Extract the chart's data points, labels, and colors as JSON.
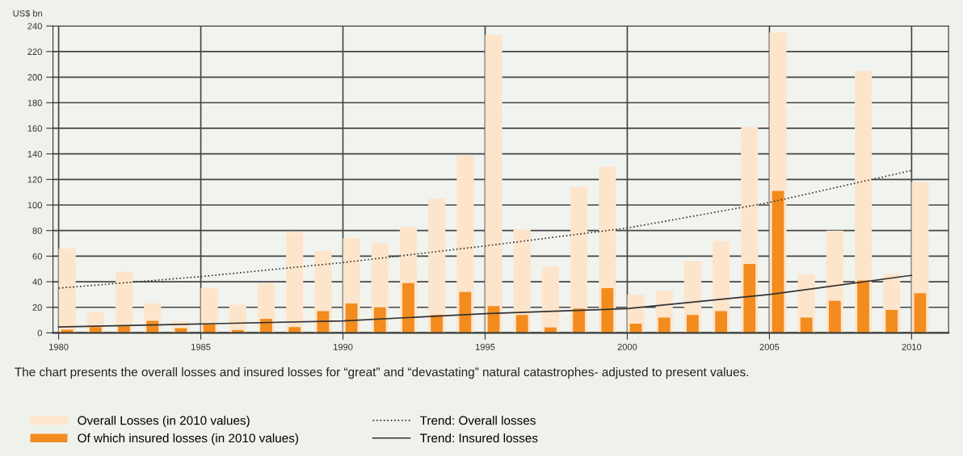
{
  "chart_data": {
    "type": "bar",
    "ylabel": "US$ bn",
    "x": [
      1980,
      1981,
      1982,
      1983,
      1984,
      1985,
      1986,
      1987,
      1988,
      1989,
      1990,
      1991,
      1992,
      1993,
      1994,
      1995,
      1996,
      1997,
      1998,
      1999,
      2000,
      2001,
      2002,
      2003,
      2004,
      2005,
      2006,
      2007,
      2008,
      2009,
      2010
    ],
    "series": [
      {
        "name": "Overall Losses (in 2010 values)",
        "color": "#fde5cc",
        "values": [
          66,
          16,
          48,
          23,
          9,
          35,
          22,
          39,
          79,
          64,
          74,
          70,
          83,
          105,
          139,
          233,
          81,
          52,
          114,
          130,
          30,
          33,
          56,
          72,
          161,
          235,
          46,
          80,
          205,
          46,
          118
        ]
      },
      {
        "name": "Of which insured losses (in 2010 values)",
        "color": "#f28c1e",
        "values": [
          2.5,
          4.6,
          5.2,
          9.4,
          3.8,
          6.7,
          2.1,
          11,
          4.6,
          17,
          23,
          20,
          39,
          14,
          32,
          21,
          14,
          4.2,
          19,
          35,
          7.3,
          12,
          14,
          17,
          54,
          111,
          12,
          25,
          41,
          18,
          31
        ]
      },
      {
        "name": "Trend: Overall losses",
        "type": "line",
        "line_style": "dotted",
        "color": "#333333",
        "x": [
          1980,
          1985,
          1990,
          1995,
          2000,
          2005,
          2010
        ],
        "values": [
          35,
          44,
          55,
          68,
          82,
          102,
          127
        ]
      },
      {
        "name": "Trend: Insured losses",
        "type": "line",
        "line_style": "solid",
        "color": "#333333",
        "x": [
          1980,
          1985,
          1990,
          1995,
          2000,
          2005,
          2010
        ],
        "values": [
          4.6,
          7,
          9.4,
          15,
          19,
          30,
          45
        ]
      }
    ],
    "xlim": [
      1979.8,
      2011.3
    ],
    "xticks": [
      1980,
      1985,
      1990,
      1995,
      2000,
      2005,
      2010
    ],
    "ylim": [
      0,
      240
    ],
    "yticks": [
      0,
      20,
      40,
      60,
      80,
      100,
      120,
      140,
      160,
      180,
      200,
      220,
      240
    ],
    "grid": true,
    "legend": "bottom",
    "annotations": [
      "The chart presents the overall losses and insured losses for “great” and “devastating” natural catastrophes- adjusted to present values."
    ]
  }
}
